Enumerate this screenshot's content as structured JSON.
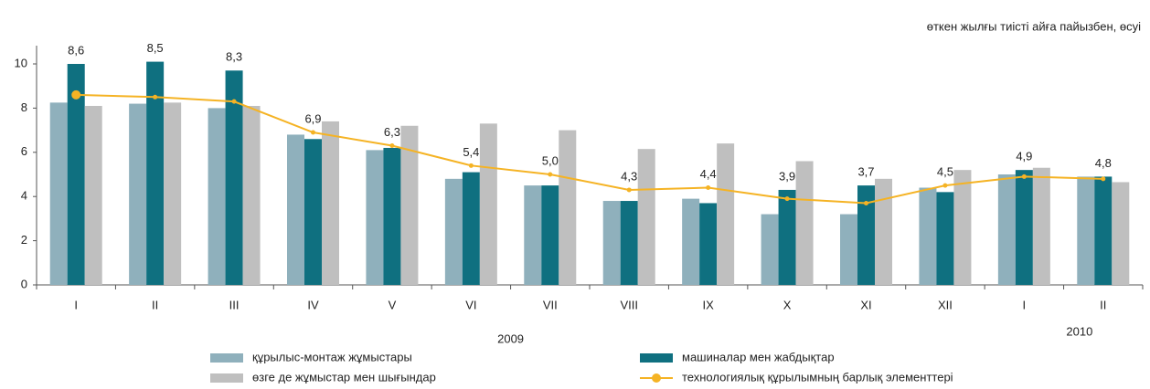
{
  "chart_data": {
    "type": "bar-line",
    "subtitle": "өткен жылғы тиісті айға пайызбен, өсуі",
    "categories": [
      "I",
      "II",
      "III",
      "IV",
      "V",
      "VI",
      "VII",
      "VIII",
      "IX",
      "X",
      "XI",
      "XII",
      "I",
      "II"
    ],
    "group_labels": [
      "2009",
      "2010"
    ],
    "ylim": [
      0,
      10
    ],
    "yticks": [
      0,
      2,
      4,
      6,
      8,
      10
    ],
    "series": [
      {
        "name": "құрылыс-монтаж жұмыстары",
        "color": "#8fb0bc",
        "kind": "bar",
        "values": [
          8.25,
          8.2,
          8.0,
          6.8,
          6.1,
          4.8,
          4.5,
          3.8,
          3.9,
          3.2,
          3.2,
          4.4,
          5.0,
          4.9
        ]
      },
      {
        "name": "машиналар мен жабдықтар",
        "color": "#0f7080",
        "kind": "bar",
        "values": [
          10.0,
          10.1,
          9.7,
          6.6,
          6.2,
          5.1,
          4.5,
          3.8,
          3.7,
          4.3,
          4.5,
          4.2,
          5.2,
          4.9
        ]
      },
      {
        "name": "өзге де жұмыстар мен шығындар",
        "color": "#bfbfbf",
        "kind": "bar",
        "values": [
          8.1,
          8.25,
          8.1,
          7.4,
          7.2,
          7.3,
          7.0,
          6.15,
          6.4,
          5.6,
          4.8,
          5.2,
          5.3,
          4.65
        ]
      },
      {
        "name": "технологиялық құрылымның барлық элементтері",
        "color": "#f5b324",
        "kind": "line",
        "values": [
          8.6,
          8.5,
          8.3,
          6.9,
          6.3,
          5.4,
          5.0,
          4.3,
          4.4,
          3.9,
          3.7,
          4.5,
          4.9,
          4.8
        ],
        "value_labels": [
          "8,6",
          "8,5",
          "8,3",
          "6,9",
          "6,3",
          "5,4",
          "5,0",
          "4,3",
          "4,4",
          "3,9",
          "3,7",
          "4,5",
          "4,9",
          "4,8"
        ]
      }
    ]
  }
}
